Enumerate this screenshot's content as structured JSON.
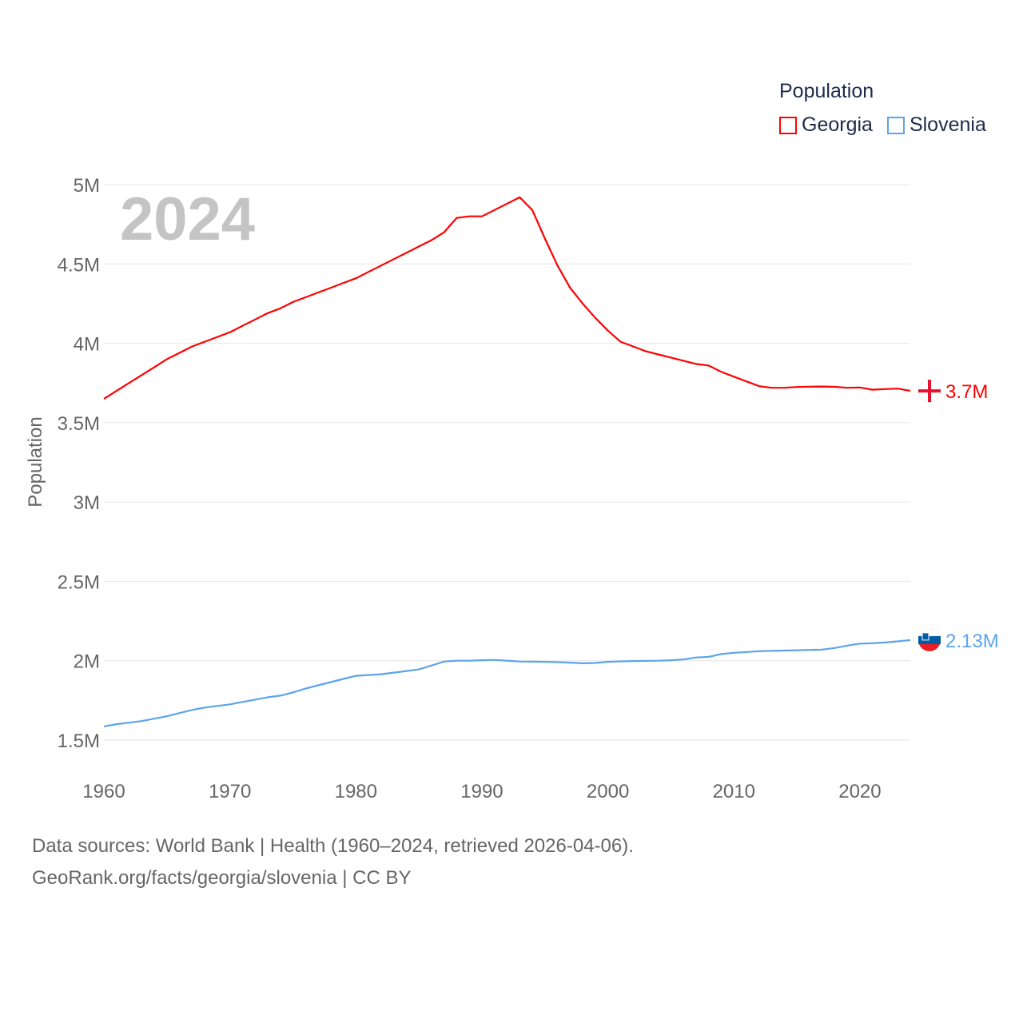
{
  "chart_data": {
    "type": "line",
    "title": "Population",
    "ylabel": "Population",
    "xlabel": "",
    "year_label": "2024",
    "ylim": [
      1500000,
      5000000
    ],
    "xlim": [
      1960,
      2024
    ],
    "grid": true,
    "legend_placement": "top-right",
    "y_ticks": [
      {
        "v": 1500000,
        "label": "1.5M"
      },
      {
        "v": 2000000,
        "label": "2M"
      },
      {
        "v": 2500000,
        "label": "2.5M"
      },
      {
        "v": 3000000,
        "label": "3M"
      },
      {
        "v": 3500000,
        "label": "3.5M"
      },
      {
        "v": 4000000,
        "label": "4M"
      },
      {
        "v": 4500000,
        "label": "4.5M"
      },
      {
        "v": 5000000,
        "label": "5M"
      }
    ],
    "x_ticks": [
      {
        "v": 1960,
        "label": "1960"
      },
      {
        "v": 1970,
        "label": "1970"
      },
      {
        "v": 1980,
        "label": "1980"
      },
      {
        "v": 1990,
        "label": "1990"
      },
      {
        "v": 2000,
        "label": "2000"
      },
      {
        "v": 2010,
        "label": "2010"
      },
      {
        "v": 2020,
        "label": "2020"
      }
    ],
    "x": [
      1960,
      1961,
      1962,
      1963,
      1964,
      1965,
      1966,
      1967,
      1968,
      1969,
      1970,
      1971,
      1972,
      1973,
      1974,
      1975,
      1976,
      1977,
      1978,
      1979,
      1980,
      1981,
      1982,
      1983,
      1984,
      1985,
      1986,
      1987,
      1988,
      1989,
      1990,
      1991,
      1992,
      1993,
      1994,
      1995,
      1996,
      1997,
      1998,
      1999,
      2000,
      2001,
      2002,
      2003,
      2004,
      2005,
      2006,
      2007,
      2008,
      2009,
      2010,
      2011,
      2012,
      2013,
      2014,
      2015,
      2016,
      2017,
      2018,
      2019,
      2020,
      2021,
      2022,
      2023,
      2024
    ],
    "series": [
      {
        "name": "Georgia",
        "color": "#ff0000",
        "end_label": "3.7M",
        "flag": "georgia-flag",
        "values": [
          3.65,
          3.7,
          3.75,
          3.8,
          3.85,
          3.9,
          3.94,
          3.98,
          4.01,
          4.04,
          4.07,
          4.11,
          4.15,
          4.19,
          4.22,
          4.26,
          4.29,
          4.32,
          4.35,
          4.38,
          4.41,
          4.45,
          4.49,
          4.53,
          4.57,
          4.61,
          4.65,
          4.7,
          4.79,
          4.8,
          4.8,
          4.84,
          4.88,
          4.92,
          4.84,
          4.66,
          4.49,
          4.35,
          4.25,
          4.16,
          4.08,
          4.01,
          3.98,
          3.95,
          3.93,
          3.91,
          3.89,
          3.87,
          3.86,
          3.82,
          3.79,
          3.76,
          3.73,
          3.72,
          3.72,
          3.725,
          3.727,
          3.728,
          3.726,
          3.72,
          3.722,
          3.708,
          3.712,
          3.715,
          3.7
        ]
      },
      {
        "name": "Slovenia",
        "color": "#5ba4ec",
        "end_label": "2.13M",
        "flag": "slovenia-flag",
        "values": [
          1.586,
          1.6,
          1.61,
          1.62,
          1.635,
          1.65,
          1.67,
          1.69,
          1.705,
          1.715,
          1.725,
          1.74,
          1.755,
          1.77,
          1.78,
          1.8,
          1.825,
          1.845,
          1.865,
          1.885,
          1.905,
          1.91,
          1.915,
          1.925,
          1.935,
          1.945,
          1.97,
          1.995,
          2.0,
          2.0,
          2.003,
          2.005,
          2.0,
          1.995,
          1.994,
          1.993,
          1.991,
          1.988,
          1.984,
          1.986,
          1.993,
          1.996,
          1.998,
          1.999,
          2.0,
          2.003,
          2.008,
          2.02,
          2.025,
          2.042,
          2.05,
          2.055,
          2.06,
          2.062,
          2.064,
          2.066,
          2.068,
          2.07,
          2.08,
          2.095,
          2.108,
          2.11,
          2.115,
          2.122,
          2.13
        ]
      }
    ]
  },
  "footer": {
    "line1": "Data sources: World Bank | Health (1960–2024, retrieved 2026-04-06).",
    "line2": "GeoRank.org/facts/georgia/slovenia | CC BY"
  }
}
